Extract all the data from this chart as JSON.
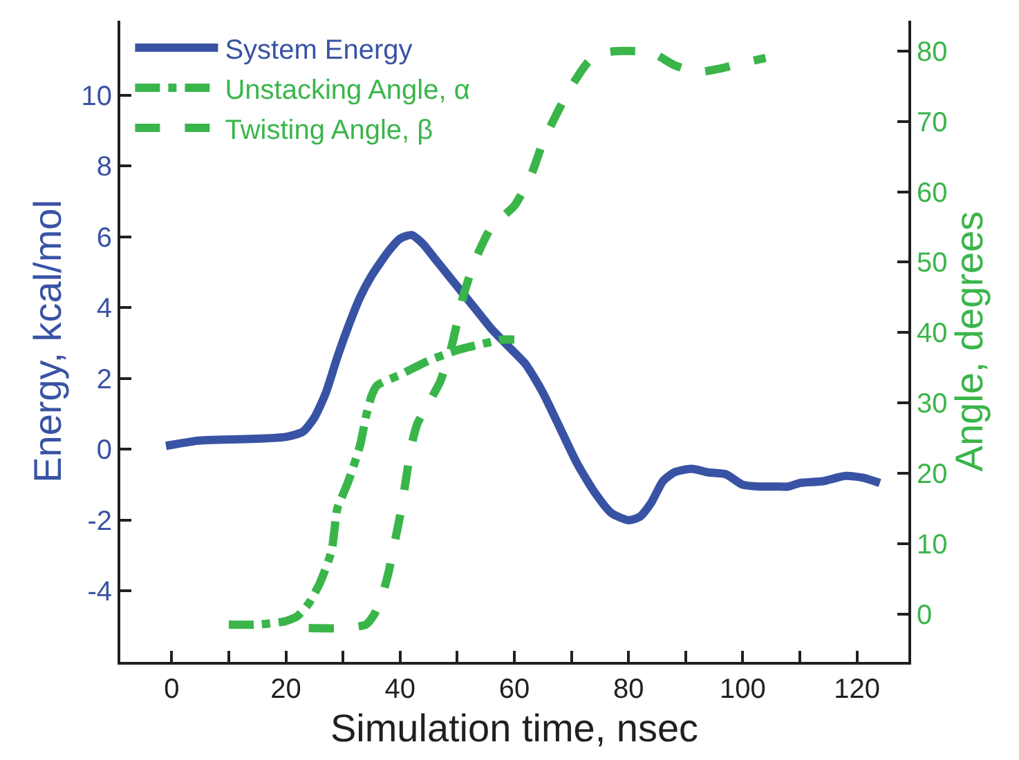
{
  "chart_data": {
    "type": "line",
    "xlabel": "Simulation time, nsec",
    "ylabel": "Energy, kcal/mol",
    "y2label": "Angle, degrees",
    "xlim": [
      -9,
      129
    ],
    "xticks": [
      0,
      {
        "value": 10,
        "label": null
      },
      20,
      {
        "value": 30,
        "label": null
      },
      40,
      {
        "value": 50,
        "label": null
      },
      60,
      {
        "value": 70,
        "label": null
      },
      80,
      {
        "value": 90,
        "label": null
      },
      100,
      {
        "value": 110,
        "label": null
      },
      120
    ],
    "ylim": [
      -6,
      12.1
    ],
    "yticks": [
      -4,
      -2,
      0,
      2,
      4,
      6,
      8,
      10
    ],
    "y2lim": [
      -6.8,
      84.3
    ],
    "y2ticks": [
      0,
      10,
      20,
      30,
      40,
      50,
      60,
      70,
      80
    ],
    "legend": "top left",
    "marker": "none",
    "series": [
      {
        "name": "System Energy",
        "color": "#3953a4",
        "line_style": "solid",
        "x": [
          -1,
          5,
          10,
          15,
          20,
          23,
          25,
          27,
          29,
          31,
          33,
          35,
          38,
          40,
          42,
          44,
          46,
          48,
          50,
          53,
          56,
          59,
          62,
          65,
          68,
          71,
          74,
          77,
          80,
          82,
          84,
          86,
          88,
          91,
          94,
          97,
          100,
          103,
          106,
          108,
          110,
          114,
          118,
          121,
          124
        ],
        "values": [
          0.1,
          0.25,
          0.28,
          0.3,
          0.35,
          0.5,
          0.9,
          1.6,
          2.6,
          3.5,
          4.3,
          4.9,
          5.6,
          5.95,
          6.05,
          5.8,
          5.4,
          5.0,
          4.6,
          4.0,
          3.4,
          2.9,
          2.4,
          1.6,
          0.6,
          -0.4,
          -1.2,
          -1.8,
          -2.0,
          -1.9,
          -1.5,
          -0.9,
          -0.65,
          -0.55,
          -0.65,
          -0.7,
          -1.0,
          -1.05,
          -1.05,
          -1.05,
          -0.95,
          -0.9,
          -0.75,
          -0.8,
          -0.95
        ]
      },
      {
        "name": "Unstacking Angle, α",
        "color": "#3ab54a",
        "line_style": "dashdot",
        "axis": "y2",
        "x": [
          10,
          15,
          20,
          22,
          24,
          26,
          28,
          29,
          30,
          31,
          33,
          34,
          35,
          36,
          40,
          45,
          50,
          55,
          58,
          60
        ],
        "values": [
          -1.5,
          -1.5,
          -1,
          -0.3,
          1.5,
          4.5,
          9,
          15,
          17,
          19,
          24,
          28,
          31,
          32.5,
          34,
          36,
          37.5,
          38.5,
          39,
          39
        ]
      },
      {
        "name": "Twisting Angle, β",
        "color": "#3ab54a",
        "line_style": "dashed",
        "axis": "y2",
        "x": [
          24,
          30,
          34,
          35.5,
          37,
          38,
          39,
          40,
          41,
          42,
          43,
          45,
          47,
          49,
          51,
          53,
          56,
          60,
          63,
          65,
          68,
          70,
          73,
          76,
          79,
          84,
          88,
          92,
          96,
          100,
          104
        ],
        "values": [
          -2,
          -2,
          -1.5,
          0,
          3,
          6,
          10,
          14,
          19,
          24,
          27,
          30,
          33,
          38,
          45,
          50,
          55,
          58,
          62.5,
          67,
          72,
          75,
          78.5,
          79.8,
          80,
          79.8,
          78,
          77,
          77.5,
          78.3,
          79
        ]
      }
    ]
  }
}
